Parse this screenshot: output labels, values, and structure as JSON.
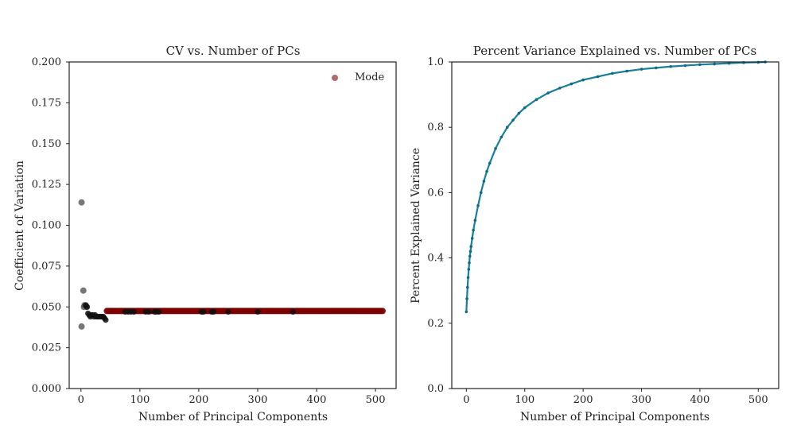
{
  "colors": {
    "gray_point": "#555555",
    "mode_point": "#7b0000",
    "mode_legend": "#b06b6b",
    "black_point": "#111111",
    "variance_line": "#1a7f9b",
    "variance_marker": "#0b6c8b"
  },
  "chart_data": [
    {
      "type": "scatter",
      "title": "CV vs. Number of PCs",
      "xlabel": "Number of Principal Components",
      "ylabel": "Coefficient of Variation",
      "xlim": [
        -20,
        535
      ],
      "ylim": [
        0,
        0.2
      ],
      "x_ticks": [
        "0",
        "100",
        "200",
        "300",
        "400",
        "500"
      ],
      "y_ticks": [
        "0.000",
        "0.025",
        "0.050",
        "0.075",
        "0.100",
        "0.125",
        "0.150",
        "0.175",
        "0.200"
      ],
      "legend": {
        "placement": "top-right",
        "entries": [
          "Mode"
        ]
      },
      "grid": false,
      "series": [
        {
          "role": "gray",
          "points": [
            [
              1,
              0.038
            ],
            [
              1,
              0.114
            ],
            [
              4,
              0.06
            ],
            [
              5,
              0.05
            ],
            [
              6,
              0.051
            ],
            [
              8,
              0.051
            ],
            [
              10,
              0.05
            ]
          ]
        },
        {
          "role": "black",
          "points": [
            [
              8,
              0.051
            ],
            [
              10,
              0.05
            ],
            [
              12,
              0.046
            ],
            [
              14,
              0.045
            ],
            [
              16,
              0.044
            ],
            [
              18,
              0.045
            ],
            [
              20,
              0.045
            ],
            [
              22,
              0.044
            ],
            [
              24,
              0.045
            ],
            [
              26,
              0.044
            ],
            [
              28,
              0.044
            ],
            [
              30,
              0.044
            ],
            [
              32,
              0.044
            ],
            [
              34,
              0.044
            ],
            [
              36,
              0.044
            ],
            [
              38,
              0.044
            ],
            [
              40,
              0.043
            ],
            [
              42,
              0.042
            ],
            [
              75,
              0.047
            ],
            [
              80,
              0.047
            ],
            [
              85,
              0.047
            ],
            [
              90,
              0.047
            ],
            [
              110,
              0.047
            ],
            [
              115,
              0.047
            ],
            [
              125,
              0.047
            ],
            [
              128,
              0.047
            ],
            [
              132,
              0.047
            ],
            [
              205,
              0.047
            ],
            [
              208,
              0.047
            ],
            [
              222,
              0.047
            ],
            [
              225,
              0.047
            ],
            [
              250,
              0.047
            ],
            [
              300,
              0.047
            ],
            [
              360,
              0.047
            ]
          ]
        },
        {
          "name": "Mode",
          "role": "mode",
          "x_range": [
            44,
            512
          ],
          "x_step": 3,
          "y": 0.0475
        }
      ]
    },
    {
      "type": "line",
      "title": "Percent Variance Explained vs. Number of PCs",
      "xlabel": "Number of Principal Components",
      "ylabel": "Percent Explained Variance",
      "xlim": [
        -25,
        535
      ],
      "ylim": [
        0,
        1.0
      ],
      "x_ticks": [
        "0",
        "100",
        "200",
        "300",
        "400",
        "500"
      ],
      "y_ticks": [
        "0.0",
        "0.2",
        "0.4",
        "0.6",
        "0.8",
        "1.0"
      ],
      "grid": false,
      "series": [
        {
          "points": [
            [
              0,
              0.235
            ],
            [
              1,
              0.275
            ],
            [
              2,
              0.31
            ],
            [
              3,
              0.34
            ],
            [
              4,
              0.365
            ],
            [
              5,
              0.385
            ],
            [
              6,
              0.405
            ],
            [
              7,
              0.42
            ],
            [
              8,
              0.435
            ],
            [
              10,
              0.46
            ],
            [
              12,
              0.485
            ],
            [
              15,
              0.515
            ],
            [
              20,
              0.56
            ],
            [
              25,
              0.6
            ],
            [
              30,
              0.635
            ],
            [
              35,
              0.665
            ],
            [
              40,
              0.69
            ],
            [
              50,
              0.735
            ],
            [
              60,
              0.77
            ],
            [
              70,
              0.8
            ],
            [
              80,
              0.822
            ],
            [
              90,
              0.843
            ],
            [
              100,
              0.86
            ],
            [
              120,
              0.885
            ],
            [
              140,
              0.905
            ],
            [
              160,
              0.92
            ],
            [
              180,
              0.933
            ],
            [
              200,
              0.945
            ],
            [
              225,
              0.955
            ],
            [
              250,
              0.965
            ],
            [
              275,
              0.972
            ],
            [
              300,
              0.978
            ],
            [
              325,
              0.982
            ],
            [
              350,
              0.986
            ],
            [
              375,
              0.989
            ],
            [
              400,
              0.992
            ],
            [
              425,
              0.994
            ],
            [
              450,
              0.996
            ],
            [
              475,
              0.998
            ],
            [
              500,
              0.999
            ],
            [
              512,
              1.0
            ]
          ]
        }
      ]
    }
  ]
}
